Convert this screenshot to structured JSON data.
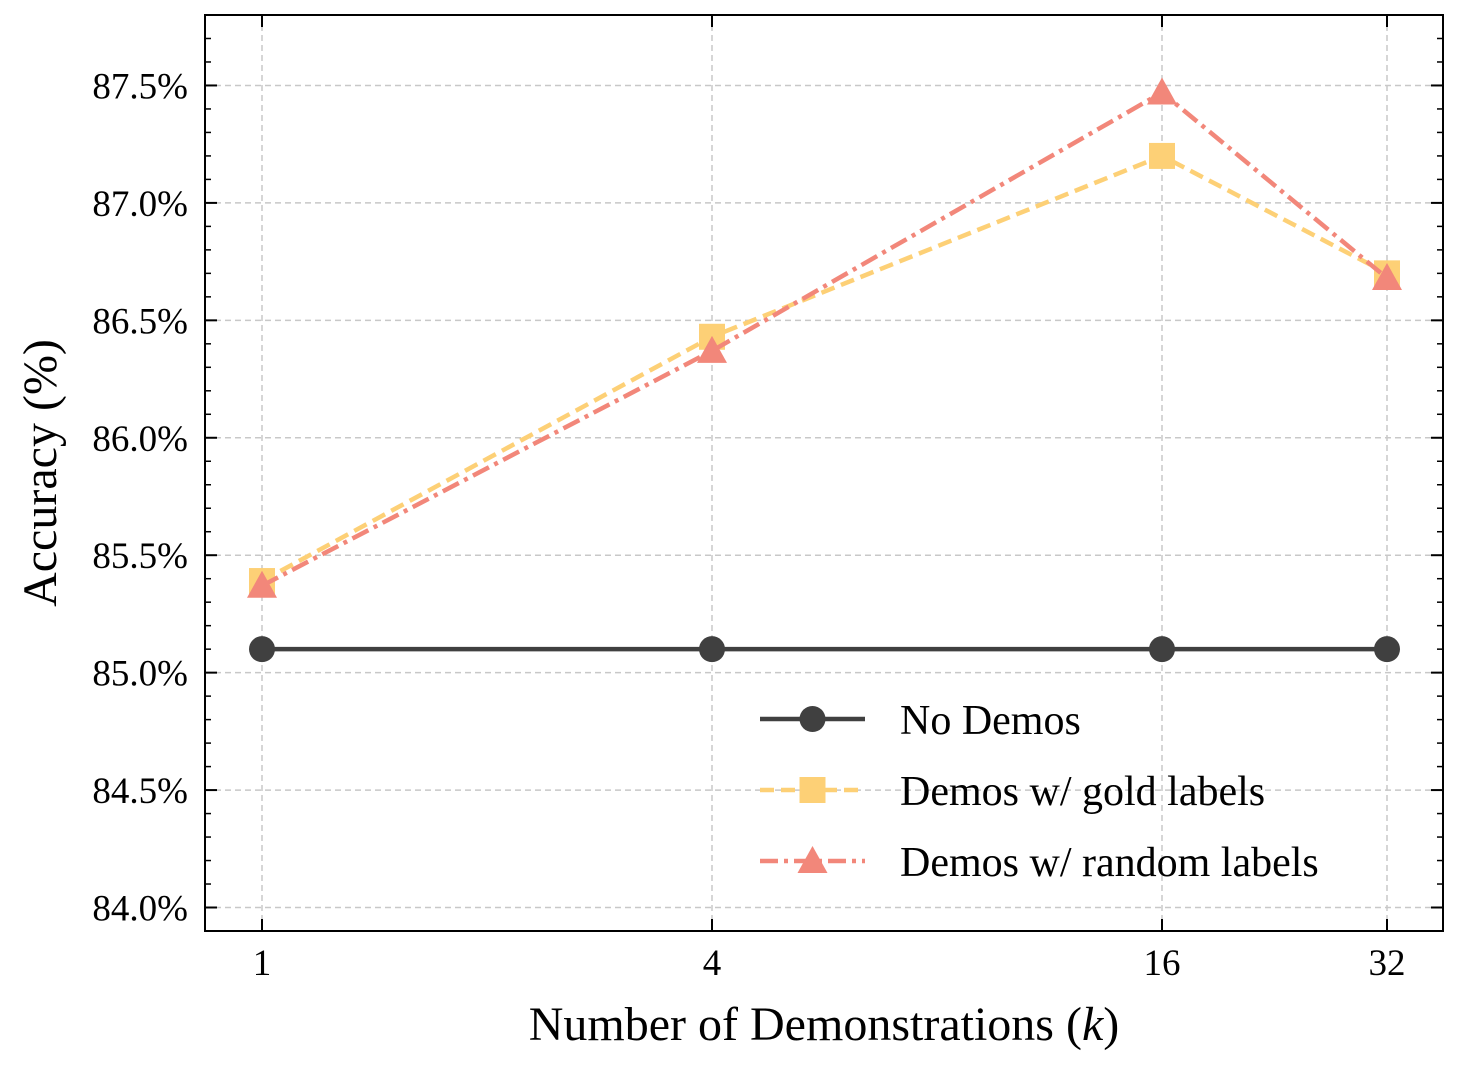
{
  "chart_data": {
    "type": "line",
    "xlabel": "Number of Demonstrations (k)",
    "xlabel_parts": {
      "prefix": "Number of Demonstrations (",
      "var": "k",
      "suffix": ")"
    },
    "ylabel": "Accuracy (%)",
    "x_scale": "log2",
    "categories": [
      "1",
      "4",
      "16",
      "32"
    ],
    "x": [
      1,
      4,
      16,
      32
    ],
    "ylim": [
      83.9,
      87.8
    ],
    "y_ticks": [
      84.0,
      84.5,
      85.0,
      85.5,
      86.0,
      86.5,
      87.0,
      87.5
    ],
    "y_tick_labels": [
      "84.0%",
      "84.5%",
      "85.0%",
      "85.5%",
      "86.0%",
      "86.5%",
      "87.0%",
      "87.5%"
    ],
    "grid": true,
    "legend_position": "lower-right",
    "series": [
      {
        "name": "No Demos",
        "values": [
          85.1,
          85.1,
          85.1,
          85.1
        ],
        "color": "#404040",
        "marker": "circle",
        "linestyle": "solid"
      },
      {
        "name": "Demos w/ gold labels",
        "values": [
          85.39,
          86.43,
          87.2,
          86.7
        ],
        "color": "#fdd076",
        "marker": "square",
        "linestyle": "dashed"
      },
      {
        "name": "Demos w/ random labels",
        "values": [
          85.37,
          86.37,
          87.47,
          86.68
        ],
        "color": "#f2877a",
        "marker": "triangle",
        "linestyle": "dashdot"
      }
    ]
  }
}
